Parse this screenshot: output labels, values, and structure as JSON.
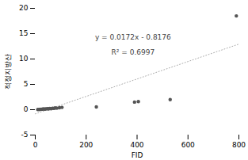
{
  "chart_data": {
    "type": "scatter",
    "x": [
      10,
      15,
      20,
      25,
      28,
      32,
      38,
      42,
      48,
      52,
      57,
      62,
      68,
      73,
      78,
      85,
      95,
      105,
      240,
      390,
      405,
      530,
      790
    ],
    "values": [
      0.05,
      0.05,
      0.08,
      0.1,
      0.1,
      0.15,
      0.12,
      0.18,
      0.2,
      0.15,
      0.25,
      0.2,
      0.3,
      0.25,
      0.35,
      0.3,
      0.4,
      0.45,
      0.55,
      1.5,
      1.6,
      2.0,
      18.5
    ],
    "color": "#555555",
    "marker": "circle",
    "xlabel": "FID",
    "ylabel": "적정지방산",
    "xlim": [
      0,
      800
    ],
    "ylim": [
      -5,
      20
    ],
    "xticks": [
      0,
      200,
      400,
      600,
      800
    ],
    "yticks": [
      -5,
      0,
      5,
      10,
      15,
      20
    ],
    "annotations": [
      "y = 0.0172x - 0.8176",
      "R² = 0.6997"
    ],
    "trendline": {
      "x": [
        0,
        800
      ],
      "values": [
        -0.8176,
        12.9424
      ],
      "color": "#aaaaaa",
      "line_style": "dotted"
    }
  }
}
